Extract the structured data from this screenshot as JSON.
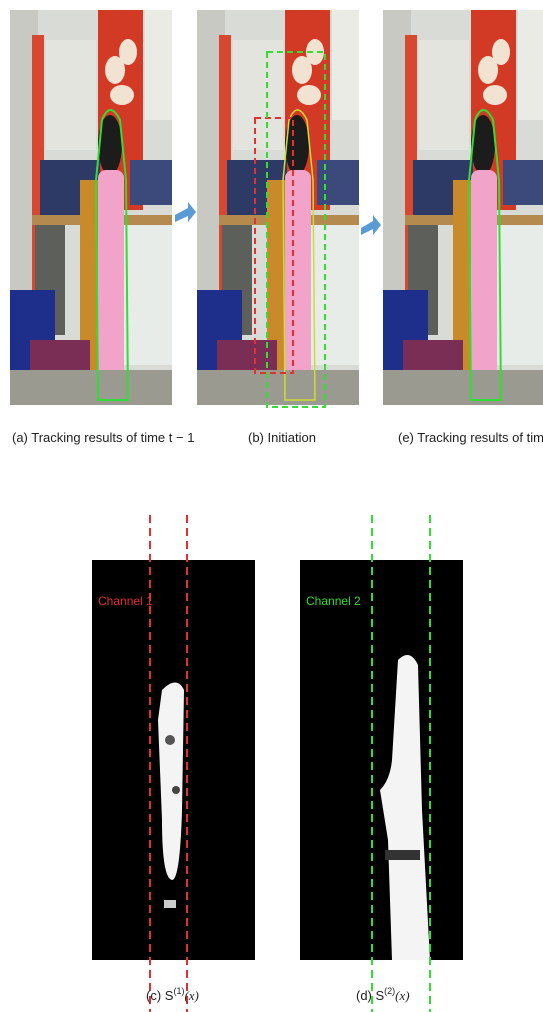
{
  "panels": {
    "a": {
      "caption": "(a)  Tracking results of time t − 1"
    },
    "b": {
      "caption": "(b) Initiation"
    },
    "e": {
      "caption": "(e) Tracking results of time t"
    },
    "c": {
      "channel": "Channel 1",
      "caption": "(c) S",
      "superscript": "(1)",
      "argument": "(x)"
    },
    "d": {
      "channel": "Channel 2",
      "caption": "(d) S",
      "superscript": "(2)",
      "argument": "(x)"
    }
  }
}
